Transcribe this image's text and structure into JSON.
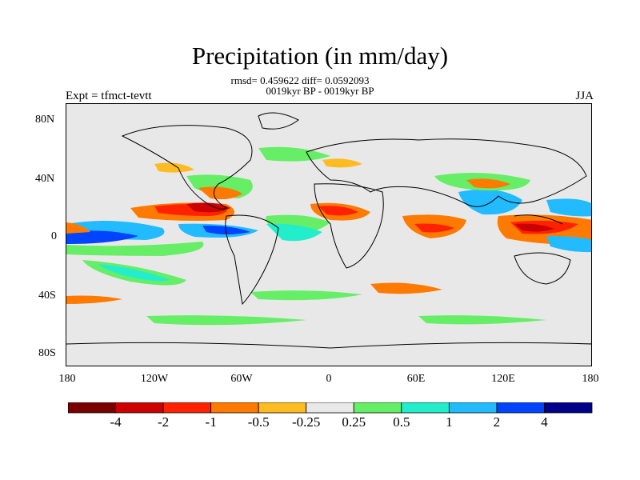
{
  "title": "Precipitation (in mm/day)",
  "stats_line": "rmsd= 0.459622 diff= 0.0592093",
  "period_line": "0019kyr BP - 0019kyr BP",
  "left_label": "Expt = tfmct-tevtt",
  "right_label": "JJA",
  "latitude_ticks": [
    "80N",
    "40N",
    "0",
    "40S",
    "80S"
  ],
  "longitude_ticks": [
    "180",
    "120W",
    "60W",
    "0",
    "60E",
    "120E",
    "180"
  ],
  "colorbar": {
    "colors": [
      "#7a0000",
      "#cc0000",
      "#ff2200",
      "#ff7a00",
      "#ffbb22",
      "#e8e8e8",
      "#66ee66",
      "#22eecc",
      "#22bbff",
      "#0044ff",
      "#000088"
    ],
    "labels": [
      "-4",
      "-2",
      "-1",
      "-0.5",
      "-0.25",
      "0.25",
      "0.5",
      "1",
      "2",
      "4"
    ]
  }
}
